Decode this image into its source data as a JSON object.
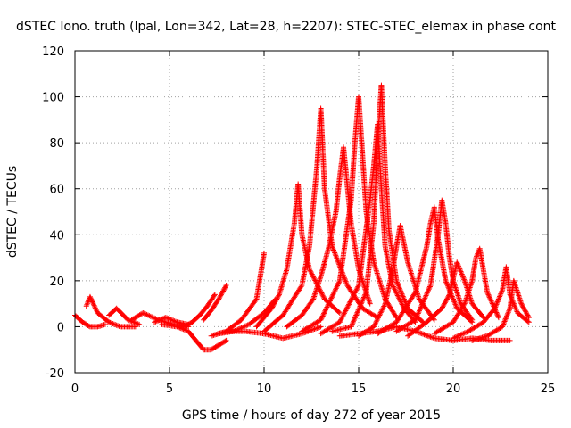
{
  "chart_data": {
    "type": "scatter",
    "title": "dSTEC Iono. truth (lpal, Lon=342, Lat=28, h=2207): STEC-STEC_elemax in phase cont",
    "xlabel": "GPS time / hours of day 272 of year 2015",
    "ylabel": "dSTEC  / TECUs",
    "xlim": [
      0,
      25
    ],
    "ylim": [
      -20,
      120
    ],
    "xticks": [
      0,
      5,
      10,
      15,
      20,
      25
    ],
    "yticks": [
      -20,
      0,
      20,
      40,
      60,
      80,
      100,
      120
    ],
    "grid": true,
    "marker": "+",
    "color": "#ff0000",
    "series": [
      {
        "x": [
          0.0,
          0.4,
          0.8,
          1.2,
          1.6
        ],
        "y": [
          5,
          2,
          0,
          0,
          1
        ]
      },
      {
        "x": [
          0.6,
          0.8,
          1.2,
          1.8,
          2.4,
          3.2
        ],
        "y": [
          9,
          13,
          6,
          2,
          0,
          0
        ]
      },
      {
        "x": [
          1.8,
          2.2,
          2.8,
          3.4
        ],
        "y": [
          5,
          8,
          3,
          1
        ]
      },
      {
        "x": [
          3.0,
          3.6,
          4.4,
          5.2,
          6.0
        ],
        "y": [
          3,
          6,
          3,
          1,
          0
        ]
      },
      {
        "x": [
          4.2,
          4.8,
          5.4,
          6.0
        ],
        "y": [
          2,
          4,
          2,
          1
        ]
      },
      {
        "x": [
          4.6,
          5.4,
          6.0,
          6.4,
          6.8,
          7.2,
          7.6,
          8.0
        ],
        "y": [
          1,
          0,
          -2,
          -6,
          -10,
          -10,
          -8,
          -6
        ]
      },
      {
        "x": [
          5.8,
          6.2,
          6.6,
          7.0,
          7.4
        ],
        "y": [
          0,
          2,
          5,
          9,
          14
        ]
      },
      {
        "x": [
          6.8,
          7.2,
          7.6,
          8.0
        ],
        "y": [
          3,
          7,
          12,
          18
        ]
      },
      {
        "x": [
          7.2,
          8.0,
          8.8,
          9.6,
          10.0
        ],
        "y": [
          -4,
          -2,
          3,
          12,
          32
        ]
      },
      {
        "x": [
          7.6,
          8.4,
          9.2,
          10.0,
          10.6
        ],
        "y": [
          -3,
          -2,
          1,
          6,
          12
        ]
      },
      {
        "x": [
          8.0,
          9.0,
          10.0,
          11.0,
          12.0,
          13.0
        ],
        "y": [
          -2,
          -2,
          -3,
          -5,
          -3,
          0
        ]
      },
      {
        "x": [
          9.6,
          10.4,
          10.8,
          11.2,
          11.6,
          11.8,
          12.0,
          12.4,
          13.2,
          14.0
        ],
        "y": [
          0,
          8,
          14,
          25,
          45,
          62,
          40,
          25,
          12,
          6
        ]
      },
      {
        "x": [
          10.0,
          11.0,
          12.0,
          12.4,
          12.8,
          13.0,
          13.2,
          13.6,
          14.4,
          15.2,
          16.0
        ],
        "y": [
          -2,
          5,
          18,
          35,
          70,
          95,
          60,
          35,
          18,
          8,
          4
        ]
      },
      {
        "x": [
          11.2,
          12.0,
          12.6,
          13.0,
          13.4,
          13.8,
          14.0,
          14.2,
          14.6,
          15.0,
          15.6
        ],
        "y": [
          0,
          5,
          12,
          22,
          34,
          50,
          65,
          78,
          45,
          25,
          10
        ]
      },
      {
        "x": [
          12.0,
          13.0,
          14.0,
          14.6,
          14.8,
          15.0,
          15.2,
          15.4,
          15.8,
          16.4,
          17.0
        ],
        "y": [
          -2,
          3,
          20,
          55,
          80,
          100,
          75,
          50,
          28,
          12,
          4
        ]
      },
      {
        "x": [
          13.0,
          14.0,
          15.0,
          15.6,
          15.8,
          16.0,
          16.2,
          16.4,
          16.8,
          17.4,
          18.0
        ],
        "y": [
          -3,
          2,
          18,
          55,
          70,
          88,
          60,
          35,
          18,
          8,
          2
        ]
      },
      {
        "x": [
          13.6,
          14.6,
          15.4,
          15.8,
          16.0,
          16.2,
          16.4,
          16.6,
          17.0,
          17.6,
          18.4
        ],
        "y": [
          -2,
          0,
          15,
          45,
          80,
          105,
          70,
          42,
          20,
          8,
          2
        ]
      },
      {
        "x": [
          15.0,
          15.8,
          16.4,
          16.8,
          17.0,
          17.2,
          17.6,
          18.2,
          19.0
        ],
        "y": [
          -4,
          0,
          10,
          25,
          35,
          44,
          28,
          12,
          3
        ]
      },
      {
        "x": [
          16.0,
          17.0,
          18.0,
          18.6,
          18.8,
          19.0,
          19.2,
          19.6,
          20.2,
          21.0
        ],
        "y": [
          -3,
          2,
          15,
          35,
          45,
          52,
          38,
          20,
          8,
          2
        ]
      },
      {
        "x": [
          17.0,
          18.0,
          18.8,
          19.2,
          19.4,
          19.6,
          19.8,
          20.0,
          20.4,
          21.0
        ],
        "y": [
          -2,
          3,
          18,
          40,
          55,
          45,
          30,
          20,
          10,
          3
        ]
      },
      {
        "x": [
          17.6,
          18.6,
          19.4,
          19.8,
          20.2,
          20.6,
          21.0,
          21.6
        ],
        "y": [
          -4,
          2,
          8,
          14,
          28,
          20,
          10,
          4
        ]
      },
      {
        "x": [
          19.0,
          20.0,
          20.6,
          21.0,
          21.2,
          21.4,
          21.8,
          22.4
        ],
        "y": [
          -3,
          2,
          10,
          20,
          30,
          34,
          15,
          4
        ]
      },
      {
        "x": [
          20.0,
          20.8,
          21.6,
          22.2,
          22.6,
          22.8,
          23.0,
          23.4,
          24.0
        ],
        "y": [
          -5,
          -2,
          2,
          8,
          16,
          26,
          14,
          6,
          2
        ]
      },
      {
        "x": [
          21.0,
          21.8,
          22.6,
          23.0,
          23.2,
          23.6,
          24.0
        ],
        "y": [
          -6,
          -4,
          0,
          8,
          20,
          10,
          4
        ]
      },
      {
        "x": [
          14.0,
          15.0,
          16.0,
          17.0,
          18.0,
          19.0,
          20.0
        ],
        "y": [
          -4,
          -3,
          -2,
          0,
          -2,
          -5,
          -6
        ]
      },
      {
        "x": [
          20.0,
          21.0,
          22.0,
          23.0
        ],
        "y": [
          -6,
          -5,
          -6,
          -6
        ]
      }
    ]
  }
}
